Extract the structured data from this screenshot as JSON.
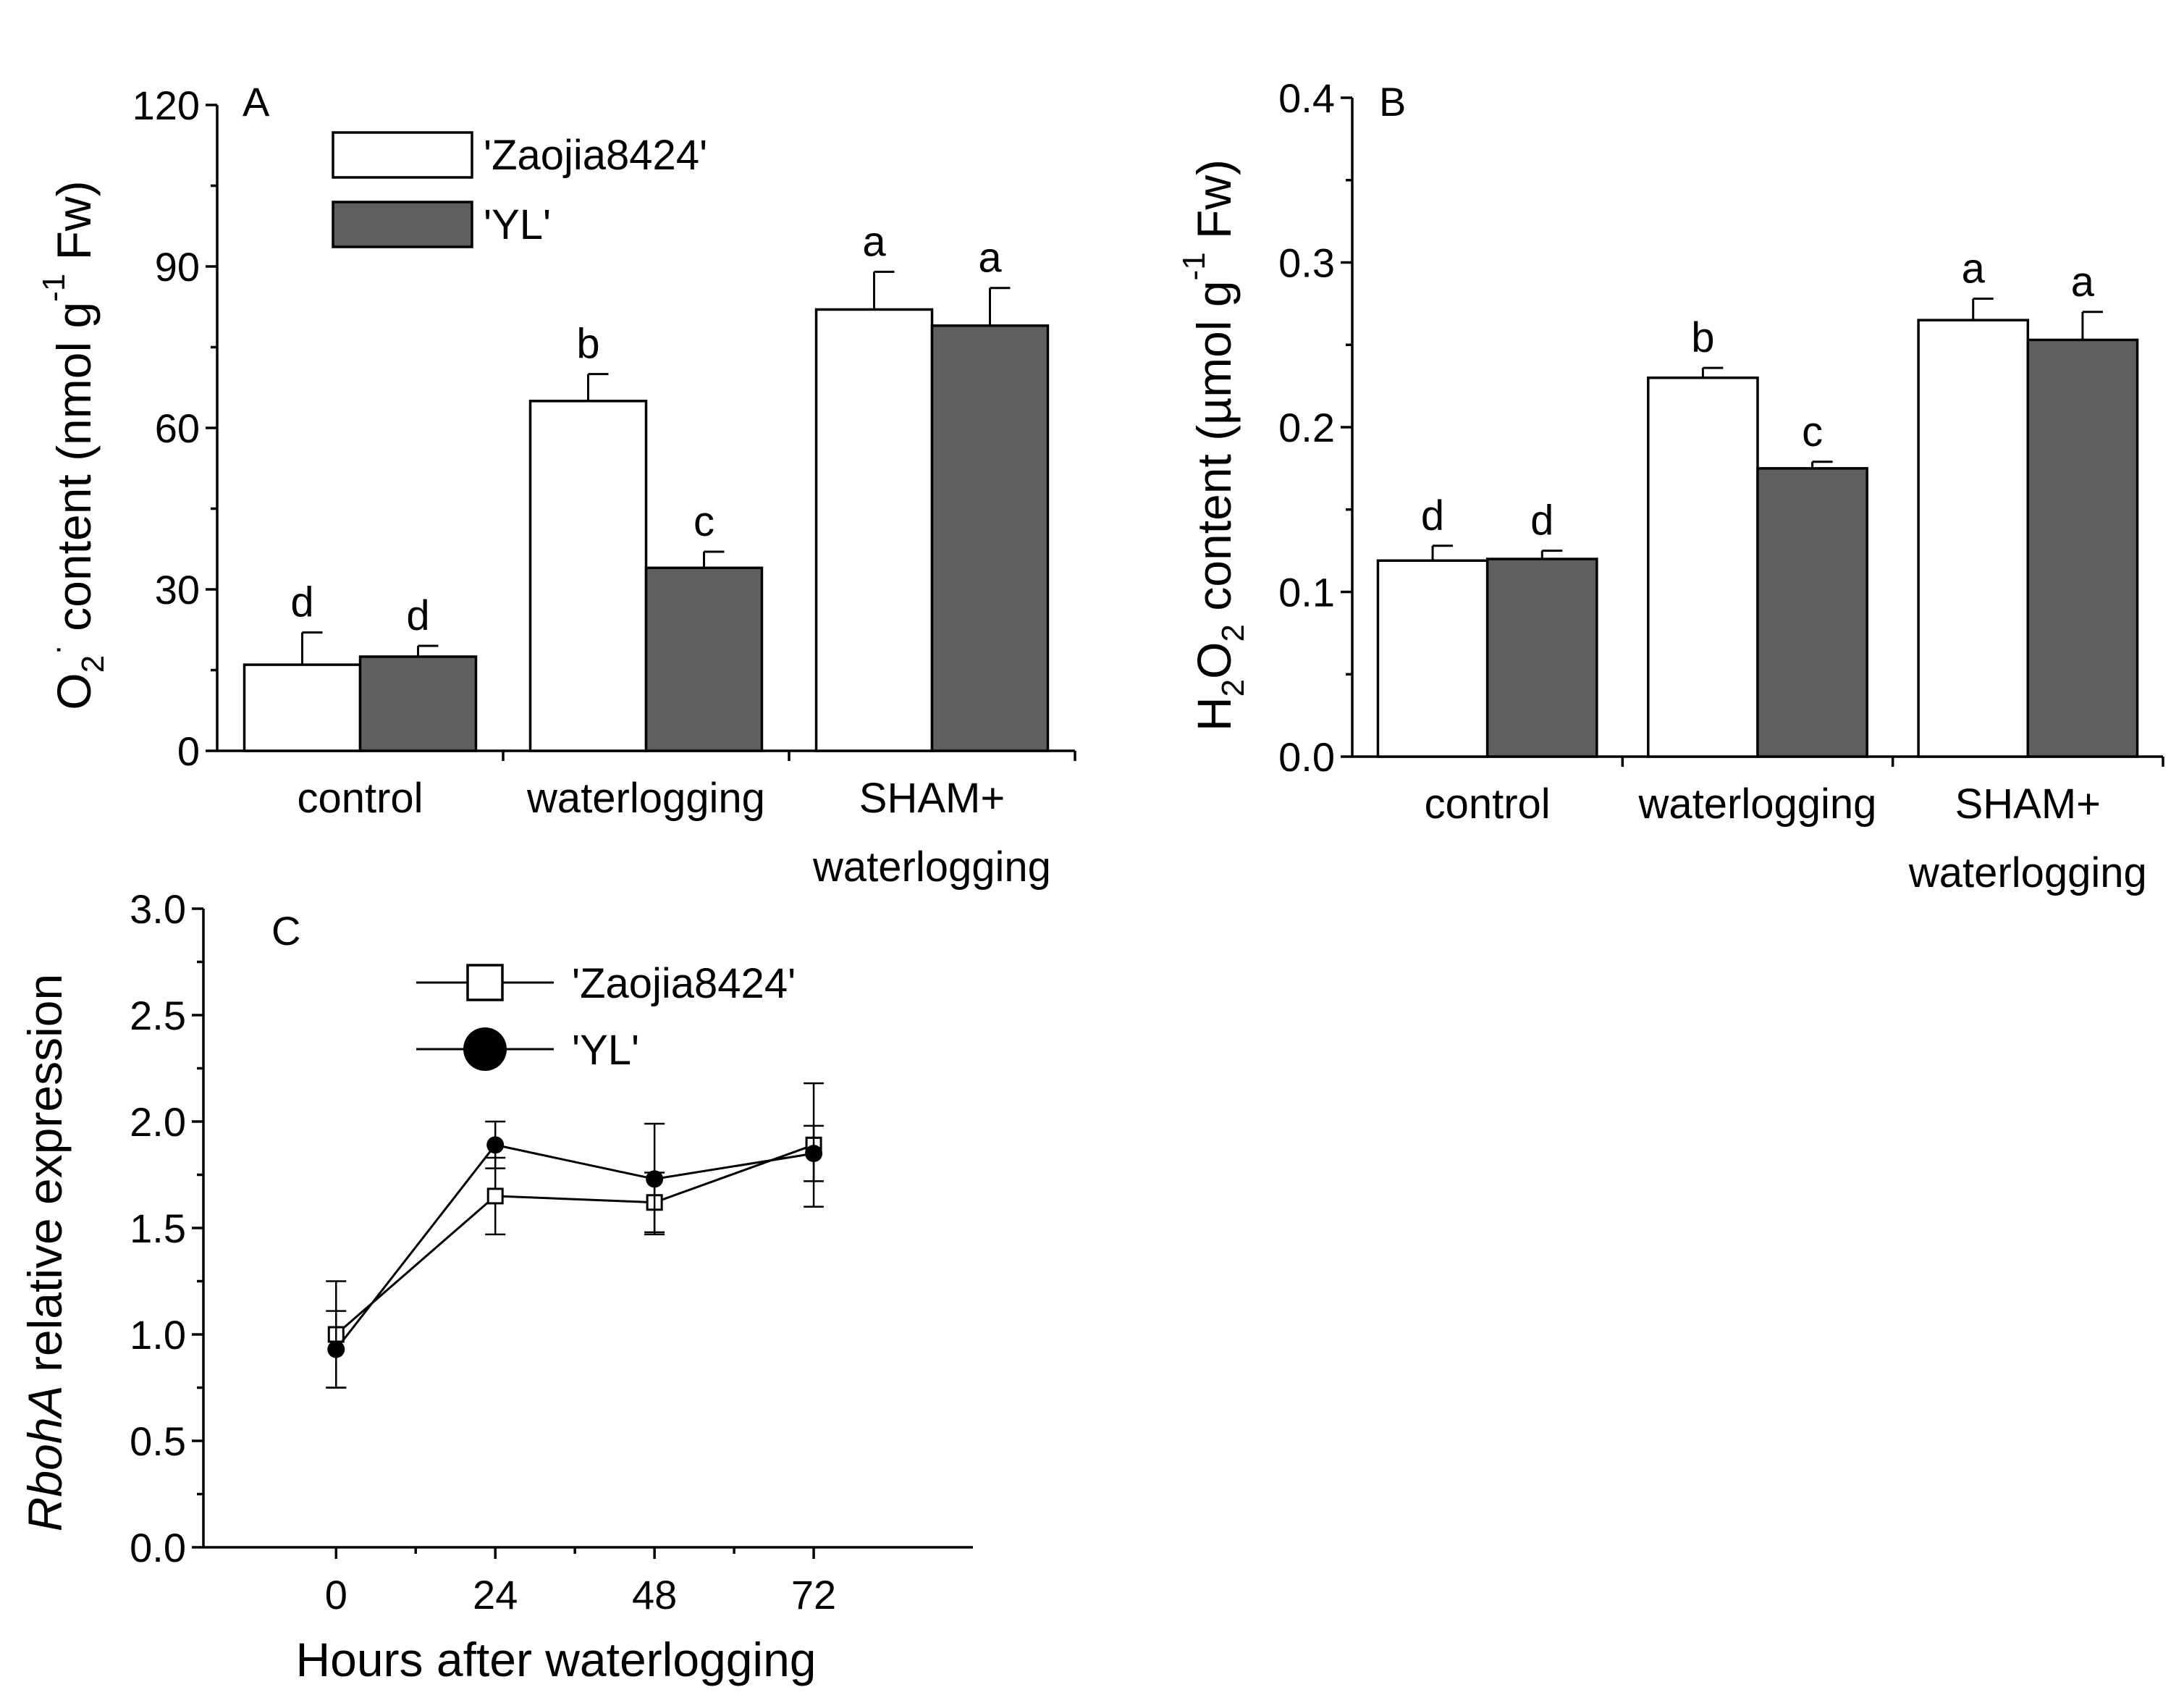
{
  "colors": {
    "series_1_fill": "#ffffff",
    "series_2_fill": "#5f5f5f",
    "stroke": "#000000"
  },
  "chart_data": [
    {
      "id": "A",
      "type": "bar",
      "panel_label": "A",
      "categories": [
        "control",
        "waterlogging",
        "SHAM+\nwaterlogging"
      ],
      "ylabel": "O2·− content (nmol g−1 Fw)",
      "ylabel_parts": {
        "base": "O",
        "sub": "2",
        "sup": "·",
        "tail": " content (nmol g",
        "sup2": "-1",
        "end": " Fw)"
      },
      "ylim": [
        0,
        120
      ],
      "yticks": [
        0,
        30,
        60,
        90,
        120
      ],
      "yticks_labels": [
        "0",
        "30",
        "60",
        "90",
        "120"
      ],
      "legend": {
        "position": "top-left",
        "entries": [
          "'Zaojia8424'",
          "'YL'"
        ]
      },
      "series": [
        {
          "name": "'Zaojia8424'",
          "values": [
            16,
            65,
            82
          ],
          "errors": [
            6,
            5,
            7
          ],
          "letters": [
            "d",
            "b",
            "a"
          ]
        },
        {
          "name": "'YL'",
          "values": [
            17.5,
            34,
            79
          ],
          "errors": [
            2,
            3,
            7
          ],
          "letters": [
            "d",
            "c",
            "a"
          ]
        }
      ]
    },
    {
      "id": "B",
      "type": "bar",
      "panel_label": "B",
      "categories": [
        "control",
        "waterlogging",
        "SHAM+\nwaterlogging"
      ],
      "ylabel": "H2O2 content (μmol g−1 Fw)",
      "ylabel_parts": {
        "base": "H",
        "sub": "2",
        "mid": "O",
        "sub2": "2",
        "tail": " content (µmol g",
        "sup": "-1",
        "end": " Fw)"
      },
      "ylim": [
        0,
        0.4
      ],
      "yticks": [
        0,
        0.1,
        0.2,
        0.3,
        0.4
      ],
      "yticks_labels": [
        "0.0",
        "0.1",
        "0.2",
        "0.3",
        "0.4"
      ],
      "series": [
        {
          "name": "'Zaojia8424'",
          "values": [
            0.119,
            0.23,
            0.265
          ],
          "errors": [
            0.009,
            0.006,
            0.013
          ],
          "letters": [
            "d",
            "b",
            "a"
          ]
        },
        {
          "name": "'YL'",
          "values": [
            0.12,
            0.175,
            0.253
          ],
          "errors": [
            0.005,
            0.004,
            0.017
          ],
          "letters": [
            "d",
            "c",
            "a"
          ]
        }
      ]
    },
    {
      "id": "C",
      "type": "line",
      "panel_label": "C",
      "x": [
        0,
        24,
        48,
        72
      ],
      "xticks_labels": [
        "0",
        "24",
        "48",
        "72"
      ],
      "xlim": [
        -20,
        96
      ],
      "xlabel": "Hours after waterlogging",
      "ylabel": "RbohA relative expression",
      "ylabel_parts": {
        "italic": "RbohA",
        "rest": " relative expression"
      },
      "ylim": [
        0,
        3
      ],
      "yticks": [
        0,
        0.5,
        1,
        1.5,
        2,
        2.5,
        3
      ],
      "yticks_labels": [
        "0.0",
        "0.5",
        "1.0",
        "1.5",
        "2.0",
        "2.5",
        "3.0"
      ],
      "legend": {
        "position": "top-left",
        "entries": [
          "'Zaojia8424'",
          "'YL'"
        ]
      },
      "series": [
        {
          "name": "'Zaojia8424'",
          "marker": "open-square",
          "values": [
            1.0,
            1.65,
            1.62,
            1.89
          ],
          "errors": [
            0.25,
            0.18,
            0.14,
            0.29
          ]
        },
        {
          "name": "'YL'",
          "marker": "filled-circle",
          "values": [
            0.93,
            1.89,
            1.73,
            1.85
          ],
          "errors": [
            0.18,
            0.11,
            0.26,
            0.13
          ]
        }
      ]
    }
  ]
}
